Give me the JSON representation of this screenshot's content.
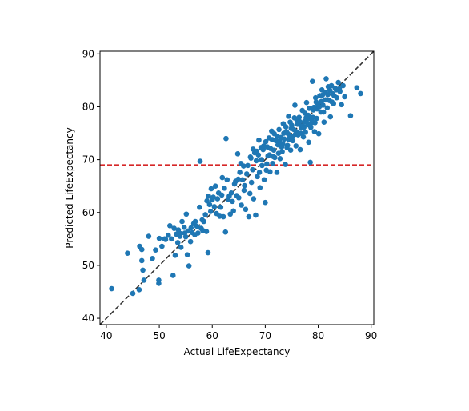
{
  "chart_data": {
    "type": "scatter",
    "title": "",
    "xlabel": "Actual LifeExpectancy",
    "ylabel": "Predicted LifeExpectancy",
    "xlim": [
      38.8,
      90.5
    ],
    "ylim": [
      38.8,
      90.5
    ],
    "xticks": [
      40,
      50,
      60,
      70,
      80,
      90
    ],
    "yticks": [
      40,
      50,
      60,
      70,
      80,
      90
    ],
    "grid": false,
    "legend": "none",
    "marker_color": "#1f77b4",
    "reference_lines": [
      {
        "kind": "identity",
        "style": "dashed",
        "color": "#333333"
      },
      {
        "kind": "horizontal",
        "y": 69.0,
        "style": "dashed",
        "color": "#d62728"
      }
    ],
    "points": [
      [
        41.0,
        45.6
      ],
      [
        44.0,
        52.3
      ],
      [
        45.0,
        44.7
      ],
      [
        46.2,
        45.4
      ],
      [
        46.3,
        53.6
      ],
      [
        46.7,
        53.0
      ],
      [
        46.7,
        50.9
      ],
      [
        46.9,
        49.1
      ],
      [
        47.1,
        47.2
      ],
      [
        48.0,
        55.5
      ],
      [
        48.7,
        51.3
      ],
      [
        49.3,
        52.9
      ],
      [
        49.9,
        47.2
      ],
      [
        49.9,
        46.6
      ],
      [
        50.0,
        55.1
      ],
      [
        50.5,
        53.6
      ],
      [
        51.0,
        55.0
      ],
      [
        51.2,
        54.9
      ],
      [
        51.7,
        55.7
      ],
      [
        52.0,
        57.5
      ],
      [
        52.3,
        55.0
      ],
      [
        52.6,
        48.1
      ],
      [
        52.8,
        57.0
      ],
      [
        53.0,
        51.9
      ],
      [
        53.2,
        55.9
      ],
      [
        53.5,
        54.3
      ],
      [
        53.6,
        56.7
      ],
      [
        53.9,
        55.5
      ],
      [
        54.0,
        56.0
      ],
      [
        54.1,
        53.4
      ],
      [
        54.3,
        58.3
      ],
      [
        54.7,
        57.2
      ],
      [
        54.8,
        56.1
      ],
      [
        55.0,
        55.4
      ],
      [
        55.1,
        59.7
      ],
      [
        55.3,
        52.0
      ],
      [
        55.4,
        56.5
      ],
      [
        55.6,
        49.9
      ],
      [
        55.9,
        54.5
      ],
      [
        56.0,
        57.1
      ],
      [
        56.2,
        56.2
      ],
      [
        56.5,
        57.9
      ],
      [
        56.7,
        55.8
      ],
      [
        56.8,
        58.3
      ],
      [
        57.1,
        57.4
      ],
      [
        57.3,
        56.1
      ],
      [
        57.6,
        61.0
      ],
      [
        57.7,
        69.7
      ],
      [
        57.9,
        57.0
      ],
      [
        58.1,
        58.6
      ],
      [
        58.2,
        56.6
      ],
      [
        58.4,
        58.3
      ],
      [
        58.7,
        59.6
      ],
      [
        58.9,
        56.4
      ],
      [
        59.0,
        62.2
      ],
      [
        59.2,
        52.4
      ],
      [
        59.3,
        63.1
      ],
      [
        59.5,
        61.5
      ],
      [
        59.7,
        60.2
      ],
      [
        59.8,
        64.5
      ],
      [
        60.0,
        62.4
      ],
      [
        60.2,
        62.9
      ],
      [
        60.4,
        61.1
      ],
      [
        60.6,
        65.0
      ],
      [
        60.8,
        59.8
      ],
      [
        61.0,
        62.6
      ],
      [
        61.2,
        63.7
      ],
      [
        61.4,
        59.3
      ],
      [
        61.6,
        61.0
      ],
      [
        61.8,
        63.3
      ],
      [
        61.9,
        66.6
      ],
      [
        62.1,
        59.2
      ],
      [
        62.3,
        64.6
      ],
      [
        62.5,
        56.3
      ],
      [
        62.6,
        74.0
      ],
      [
        62.8,
        66.2
      ],
      [
        63.0,
        62.5
      ],
      [
        63.2,
        63.1
      ],
      [
        63.4,
        59.7
      ],
      [
        63.6,
        63.7
      ],
      [
        63.8,
        62.1
      ],
      [
        64.0,
        60.3
      ],
      [
        64.2,
        65.4
      ],
      [
        64.4,
        65.9
      ],
      [
        64.6,
        63.2
      ],
      [
        64.8,
        71.1
      ],
      [
        65.0,
        62.8
      ],
      [
        65.2,
        67.6
      ],
      [
        65.4,
        69.3
      ],
      [
        65.5,
        61.4
      ],
      [
        65.7,
        66.2
      ],
      [
        65.9,
        68.8
      ],
      [
        66.1,
        65.1
      ],
      [
        66.3,
        60.6
      ],
      [
        66.5,
        67.3
      ],
      [
        66.7,
        68.9
      ],
      [
        66.9,
        59.2
      ],
      [
        67.1,
        63.6
      ],
      [
        67.2,
        70.5
      ],
      [
        67.4,
        65.7
      ],
      [
        67.6,
        68.1
      ],
      [
        67.8,
        62.6
      ],
      [
        68.0,
        71.3
      ],
      [
        68.2,
        59.5
      ],
      [
        68.3,
        69.8
      ],
      [
        68.5,
        66.8
      ],
      [
        68.7,
        70.9
      ],
      [
        68.9,
        67.6
      ],
      [
        69.0,
        64.7
      ],
      [
        69.2,
        72.3
      ],
      [
        69.4,
        68.9
      ],
      [
        69.6,
        71.9
      ],
      [
        69.8,
        66.2
      ],
      [
        70.0,
        61.9
      ],
      [
        70.1,
        73.4
      ],
      [
        70.3,
        69.2
      ],
      [
        70.5,
        70.7
      ],
      [
        70.7,
        74.1
      ],
      [
        70.9,
        67.7
      ],
      [
        71.0,
        72.1
      ],
      [
        71.2,
        75.4
      ],
      [
        71.4,
        69.3
      ],
      [
        71.6,
        71.8
      ],
      [
        71.8,
        70.4
      ],
      [
        72.0,
        73.6
      ],
      [
        72.2,
        67.6
      ],
      [
        72.4,
        72.8
      ],
      [
        72.6,
        75.7
      ],
      [
        72.8,
        70.2
      ],
      [
        73.0,
        74.2
      ],
      [
        73.2,
        71.5
      ],
      [
        73.4,
        76.8
      ],
      [
        73.6,
        73.9
      ],
      [
        73.8,
        69.1
      ],
      [
        74.0,
        75.3
      ],
      [
        74.2,
        72.7
      ],
      [
        74.4,
        78.2
      ],
      [
        74.6,
        74.1
      ],
      [
        74.8,
        71.8
      ],
      [
        75.0,
        76.5
      ],
      [
        75.2,
        73.6
      ],
      [
        75.4,
        75.7
      ],
      [
        75.6,
        80.3
      ],
      [
        75.8,
        72.6
      ],
      [
        76.0,
        77.4
      ],
      [
        76.2,
        74.7
      ],
      [
        76.4,
        78.0
      ],
      [
        76.6,
        71.9
      ],
      [
        76.8,
        76.0
      ],
      [
        77.0,
        79.3
      ],
      [
        77.2,
        74.3
      ],
      [
        77.4,
        77.2
      ],
      [
        77.6,
        75.2
      ],
      [
        77.8,
        80.8
      ],
      [
        78.0,
        76.6
      ],
      [
        78.2,
        73.3
      ],
      [
        78.4,
        78.1
      ],
      [
        78.5,
        69.5
      ],
      [
        78.7,
        76.9
      ],
      [
        78.9,
        84.8
      ],
      [
        79.1,
        79.4
      ],
      [
        79.3,
        75.3
      ],
      [
        79.5,
        81.7
      ],
      [
        79.7,
        77.8
      ],
      [
        79.9,
        80.6
      ],
      [
        80.1,
        74.9
      ],
      [
        80.3,
        82.1
      ],
      [
        80.5,
        79.0
      ],
      [
        80.7,
        83.2
      ],
      [
        80.9,
        80.3
      ],
      [
        81.1,
        77.1
      ],
      [
        81.3,
        82.7
      ],
      [
        81.5,
        85.3
      ],
      [
        81.7,
        79.8
      ],
      [
        81.9,
        83.8
      ],
      [
        82.1,
        81.2
      ],
      [
        82.3,
        78.1
      ],
      [
        82.5,
        84.0
      ],
      [
        82.7,
        82.5
      ],
      [
        82.9,
        80.6
      ],
      [
        83.2,
        83.5
      ],
      [
        83.5,
        81.7
      ],
      [
        83.8,
        84.6
      ],
      [
        84.1,
        82.9
      ],
      [
        84.4,
        80.4
      ],
      [
        84.7,
        84.0
      ],
      [
        85.0,
        81.9
      ],
      [
        86.1,
        78.3
      ],
      [
        87.3,
        83.6
      ],
      [
        88.0,
        82.5
      ],
      [
        67.3,
        70.3
      ],
      [
        67.7,
        72.0
      ],
      [
        68.4,
        71.6
      ],
      [
        68.8,
        73.7
      ],
      [
        69.3,
        70.0
      ],
      [
        69.7,
        72.6
      ],
      [
        70.4,
        72.4
      ],
      [
        70.8,
        70.9
      ],
      [
        71.3,
        73.8
      ],
      [
        71.7,
        74.9
      ],
      [
        72.3,
        74.4
      ],
      [
        72.7,
        73.5
      ],
      [
        73.1,
        72.4
      ],
      [
        73.5,
        75.0
      ],
      [
        73.9,
        76.2
      ],
      [
        74.3,
        74.9
      ],
      [
        74.7,
        77.1
      ],
      [
        75.1,
        74.4
      ],
      [
        75.5,
        77.9
      ],
      [
        75.9,
        75.3
      ],
      [
        76.3,
        76.8
      ],
      [
        76.7,
        75.0
      ],
      [
        77.1,
        76.4
      ],
      [
        77.5,
        78.8
      ],
      [
        77.9,
        77.6
      ],
      [
        78.3,
        79.7
      ],
      [
        78.6,
        76.1
      ],
      [
        79.0,
        78.0
      ],
      [
        79.4,
        77.0
      ],
      [
        79.8,
        79.6
      ],
      [
        80.2,
        80.0
      ],
      [
        80.6,
        81.0
      ],
      [
        81.0,
        79.0
      ],
      [
        81.4,
        81.3
      ],
      [
        81.8,
        82.3
      ],
      [
        82.2,
        83.1
      ],
      [
        82.6,
        80.9
      ],
      [
        83.0,
        82.1
      ],
      [
        83.4,
        83.2
      ],
      [
        84.0,
        83.4
      ],
      [
        72.5,
        71.2
      ],
      [
        73.3,
        73.0
      ],
      [
        74.1,
        72.3
      ],
      [
        74.9,
        75.9
      ],
      [
        75.7,
        74.8
      ],
      [
        76.5,
        77.2
      ],
      [
        77.3,
        76.1
      ],
      [
        78.1,
        78.4
      ],
      [
        78.8,
        77.4
      ],
      [
        79.6,
        80.9
      ],
      [
        70.2,
        68.0
      ],
      [
        71.5,
        70.6
      ],
      [
        72.9,
        73.1
      ],
      [
        74.5,
        73.8
      ],
      [
        76.1,
        76.7
      ],
      [
        77.7,
        77.9
      ],
      [
        79.2,
        79.9
      ],
      [
        80.8,
        82.2
      ],
      [
        64.9,
        66.3
      ],
      [
        66.0,
        64.2
      ]
    ]
  }
}
